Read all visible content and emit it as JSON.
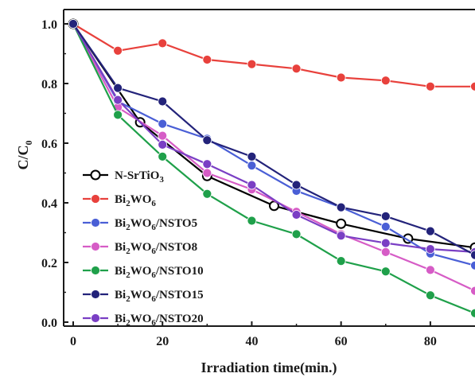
{
  "chart_data": {
    "type": "line",
    "title": "",
    "xlabel": "Irradiation time(min.)",
    "ylabel": {
      "base": "C/C",
      "sub": "0"
    },
    "xlim": [
      0,
      90
    ],
    "ylim": [
      0,
      1.05
    ],
    "xticks": [
      0,
      20,
      40,
      60,
      80
    ],
    "yticks": [
      0.0,
      0.2,
      0.4,
      0.6,
      0.8,
      1.0
    ],
    "grid": false,
    "legend_position": "bottom-left",
    "series": [
      {
        "name": {
          "parts": [
            [
              "N-SrTiO",
              ""
            ],
            [
              "3",
              "sub"
            ]
          ]
        },
        "color": "#000000",
        "x": [
          0,
          15,
          30,
          45,
          60,
          75,
          90
        ],
        "y": [
          1.0,
          0.67,
          0.49,
          0.39,
          0.33,
          0.28,
          0.25
        ]
      },
      {
        "name": {
          "parts": [
            [
              "Bi",
              ""
            ],
            [
              "2",
              "sub"
            ],
            [
              "WO",
              ""
            ],
            [
              "6",
              "sub"
            ]
          ]
        },
        "color": "#e8413c",
        "x": [
          0,
          10,
          20,
          30,
          40,
          50,
          60,
          70,
          80,
          90
        ],
        "y": [
          1.0,
          0.91,
          0.935,
          0.88,
          0.865,
          0.85,
          0.82,
          0.81,
          0.79,
          0.79
        ]
      },
      {
        "name": {
          "parts": [
            [
              "Bi",
              ""
            ],
            [
              "2",
              "sub"
            ],
            [
              "WO",
              ""
            ],
            [
              "6",
              "sub"
            ],
            [
              "/NSTO5",
              ""
            ]
          ]
        },
        "color": "#4a5fd6",
        "x": [
          0,
          10,
          20,
          30,
          40,
          50,
          60,
          70,
          80,
          90
        ],
        "y": [
          1.0,
          0.74,
          0.665,
          0.615,
          0.525,
          0.44,
          0.385,
          0.32,
          0.23,
          0.19
        ]
      },
      {
        "name": {
          "parts": [
            [
              "Bi",
              ""
            ],
            [
              "2",
              "sub"
            ],
            [
              "WO",
              ""
            ],
            [
              "6",
              "sub"
            ],
            [
              "/NSTO8",
              ""
            ]
          ]
        },
        "color": "#d65cc6",
        "x": [
          0,
          10,
          20,
          30,
          40,
          50,
          60,
          70,
          80,
          90
        ],
        "y": [
          1.0,
          0.72,
          0.625,
          0.5,
          0.445,
          0.37,
          0.295,
          0.235,
          0.175,
          0.105
        ]
      },
      {
        "name": {
          "parts": [
            [
              "Bi",
              ""
            ],
            [
              "2",
              "sub"
            ],
            [
              "WO",
              ""
            ],
            [
              "6",
              "sub"
            ],
            [
              "/NSTO10",
              ""
            ]
          ]
        },
        "color": "#1fa04a",
        "x": [
          0,
          10,
          20,
          30,
          40,
          50,
          60,
          70,
          80,
          90
        ],
        "y": [
          1.0,
          0.695,
          0.555,
          0.43,
          0.34,
          0.295,
          0.205,
          0.17,
          0.09,
          0.03
        ]
      },
      {
        "name": {
          "parts": [
            [
              "Bi",
              ""
            ],
            [
              "2",
              "sub"
            ],
            [
              "WO",
              ""
            ],
            [
              "6",
              "sub"
            ],
            [
              "/NSTO15",
              ""
            ]
          ]
        },
        "color": "#23237a",
        "x": [
          0,
          10,
          20,
          30,
          40,
          50,
          60,
          70,
          80,
          90
        ],
        "y": [
          1.0,
          0.785,
          0.74,
          0.61,
          0.555,
          0.46,
          0.385,
          0.355,
          0.305,
          0.225
        ]
      },
      {
        "name": {
          "parts": [
            [
              "Bi",
              ""
            ],
            [
              "2",
              "sub"
            ],
            [
              "WO",
              ""
            ],
            [
              "6",
              "sub"
            ],
            [
              "/NSTO20",
              ""
            ]
          ]
        },
        "color": "#7a3fc4",
        "x": [
          0,
          10,
          20,
          30,
          40,
          50,
          60,
          70,
          80,
          90
        ],
        "y": [
          1.0,
          0.745,
          0.595,
          0.53,
          0.46,
          0.36,
          0.29,
          0.265,
          0.245,
          0.235
        ]
      }
    ]
  }
}
